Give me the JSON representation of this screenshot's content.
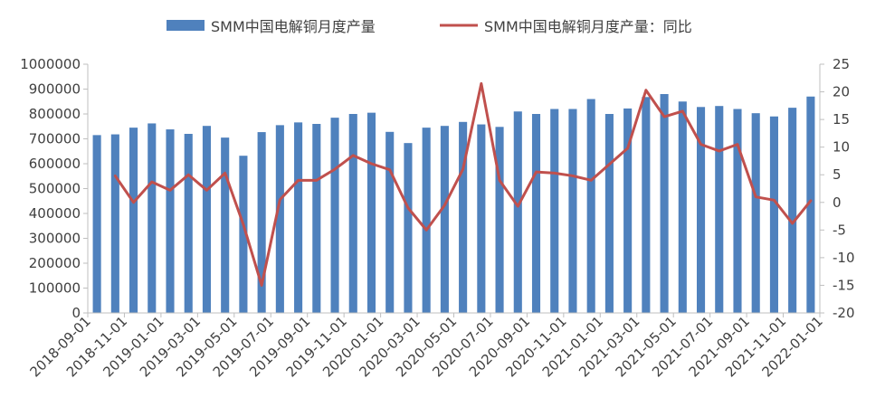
{
  "chart_data": {
    "type": "bar+line",
    "title": "",
    "legend": {
      "placement": "top",
      "entries": [
        {
          "label": "SMM中国电解铜月度产量",
          "kind": "bar",
          "color": "#4F81BD"
        },
        {
          "label": "SMM中国电解铜月度产量：同比",
          "kind": "line",
          "color": "#C0504D"
        }
      ]
    },
    "x_tick_labels": [
      "2018-09-01",
      "2018-11-01",
      "2019-01-01",
      "2019-03-01",
      "2019-05-01",
      "2019-07-01",
      "2019-09-01",
      "2019-11-01",
      "2020-01-01",
      "2020-03-01",
      "2020-05-01",
      "2020-07-01",
      "2020-09-01",
      "2020-11-01",
      "2021-01-01",
      "2021-03-01",
      "2021-05-01",
      "2021-07-01",
      "2021-09-01",
      "2021-11-01",
      "2022-01-01"
    ],
    "y_left": {
      "range": [
        0,
        1000000
      ],
      "ticks": [
        "0",
        "100000",
        "200000",
        "300000",
        "400000",
        "500000",
        "600000",
        "700000",
        "800000",
        "900000",
        "1000000"
      ]
    },
    "y_right": {
      "range": [
        -20,
        25
      ],
      "ticks": [
        "-20",
        "-15",
        "-10",
        "-5",
        "0",
        "5",
        "10",
        "15",
        "20",
        "25"
      ]
    },
    "grid": false,
    "series": [
      {
        "name": "SMM中国电解铜月度产量",
        "type": "bar",
        "axis": "left",
        "values": [
          715000,
          718000,
          745000,
          762000,
          738000,
          720000,
          752000,
          705000,
          632000,
          727000,
          755000,
          766000,
          760000,
          785000,
          800000,
          805000,
          728000,
          683000,
          745000,
          752000,
          768000,
          758000,
          748000,
          810000,
          800000,
          820000,
          820000,
          860000,
          800000,
          822000,
          868000,
          880000,
          850000,
          828000,
          832000,
          820000,
          803000,
          790000,
          825000,
          870000
        ]
      },
      {
        "name": "SMM中国电解铜月度产量：同比",
        "type": "line",
        "axis": "right",
        "values": [
          null,
          4.8,
          0.0,
          3.7,
          2.2,
          5.0,
          2.2,
          5.3,
          -4.0,
          -15.0,
          0.5,
          4.0,
          4.0,
          6.0,
          8.5,
          7.0,
          5.9,
          -1.0,
          -5.0,
          -0.5,
          6.0,
          21.5,
          4.0,
          -0.7,
          5.5,
          5.3,
          4.8,
          4.0,
          6.9,
          9.8,
          20.3,
          15.5,
          16.5,
          10.5,
          9.3,
          10.5,
          1.0,
          0.4,
          -3.8,
          0.3
        ]
      }
    ]
  }
}
